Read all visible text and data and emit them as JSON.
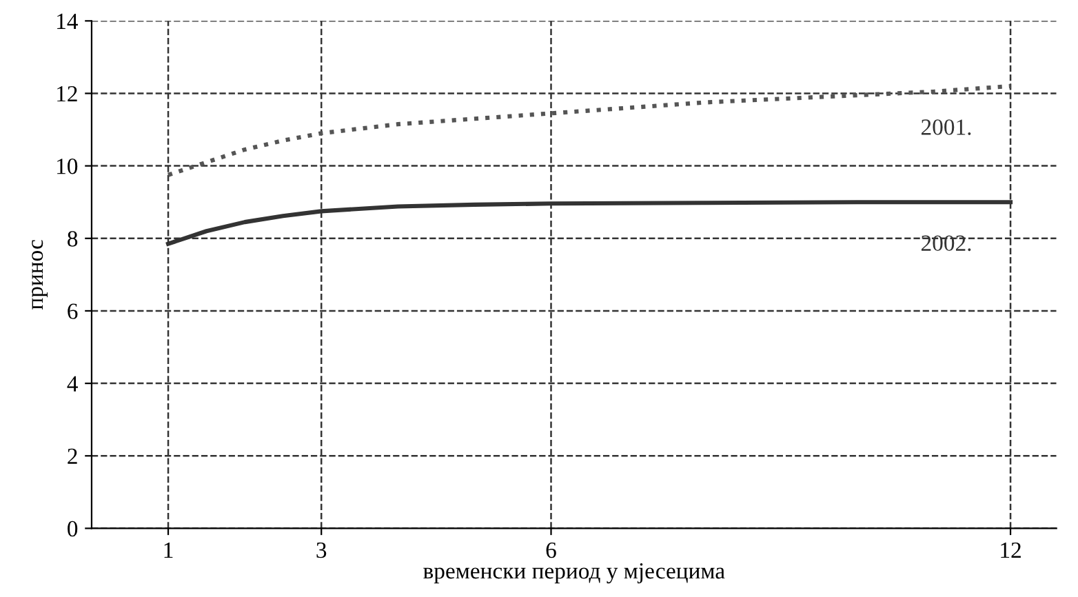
{
  "chart_data": {
    "type": "line",
    "xlabel": "временски период у мјесецима",
    "ylabel": "принос",
    "xlim": [
      0,
      12.6
    ],
    "xticks": [
      1,
      3,
      6,
      12
    ],
    "ylim": [
      0,
      14
    ],
    "yticks": [
      0,
      2,
      4,
      6,
      8,
      10,
      12,
      14
    ],
    "grid": true,
    "marker": "none",
    "series": [
      {
        "name": "2001.",
        "color": "#555555",
        "line_style": "dotted",
        "x": [
          1,
          1.5,
          2,
          2.5,
          3,
          4,
          5,
          6,
          7,
          8,
          9,
          10,
          11,
          12
        ],
        "values": [
          9.75,
          10.1,
          10.45,
          10.7,
          10.9,
          11.15,
          11.3,
          11.45,
          11.6,
          11.75,
          11.85,
          11.95,
          12.05,
          12.2
        ]
      },
      {
        "name": "2002.",
        "color": "#333333",
        "line_style": "solid",
        "x": [
          1,
          1.5,
          2,
          2.5,
          3,
          4,
          5,
          6,
          8,
          10,
          12
        ],
        "values": [
          7.85,
          8.2,
          8.45,
          8.62,
          8.75,
          8.88,
          8.93,
          8.96,
          8.98,
          9.0,
          9.0
        ]
      }
    ]
  }
}
